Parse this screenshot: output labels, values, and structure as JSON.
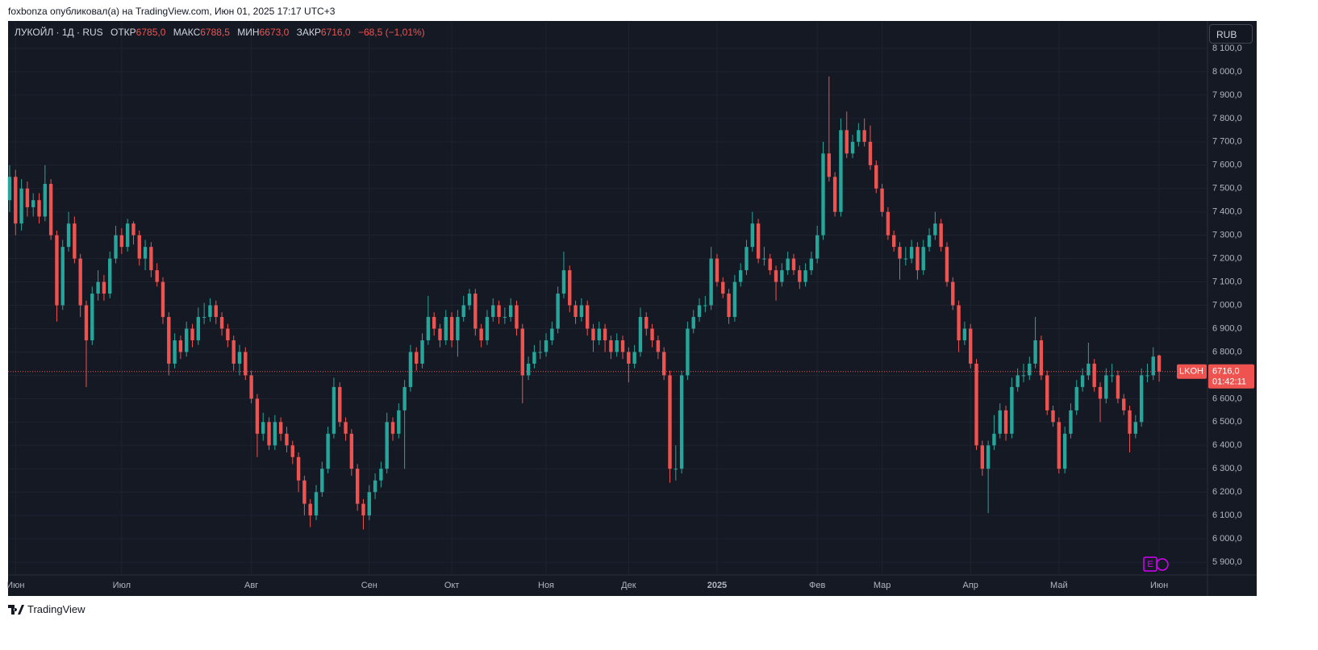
{
  "header": {
    "published": "foxbonza опубликовал(а) на TradingView.com, Июн 01, 2025 17:17 UTC+3"
  },
  "footer": {
    "brand": "TradingView"
  },
  "chart_data": {
    "type": "candlestick",
    "symbol": "ЛУКОЙЛ · 1Д · RUS",
    "legend": {
      "open_label": "ОТКР",
      "open": "6785,0",
      "high_label": "МАКС",
      "high": "6788,5",
      "low_label": "МИН",
      "low": "6673,0",
      "close_label": "ЗАКР",
      "close": "6716,0",
      "change": "−68,5 (−1,01%)"
    },
    "currency": "RUB",
    "price_tag": {
      "ticker": "LKOH",
      "price": "6716,0",
      "countdown": "01:42:11"
    },
    "event_marker": "E",
    "up_color": "#26a69a",
    "down_color": "#ef5350",
    "grid": true,
    "xlim": [
      -0.27,
      203.2
    ],
    "xticks": [
      {
        "value": 1,
        "label": "Июн"
      },
      {
        "value": 19,
        "label": "Июл"
      },
      {
        "value": 41,
        "label": "Авг"
      },
      {
        "value": 61,
        "label": "Сен"
      },
      {
        "value": 75,
        "label": "Окт"
      },
      {
        "value": 91,
        "label": "Ноя"
      },
      {
        "value": 105,
        "label": "Дек"
      },
      {
        "value": 120,
        "label": "2025"
      },
      {
        "value": 137,
        "label": "Фев"
      },
      {
        "value": 148,
        "label": "Мар"
      },
      {
        "value": 163,
        "label": "Апр"
      },
      {
        "value": 178,
        "label": "Май"
      },
      {
        "value": 195,
        "label": "Июн"
      }
    ],
    "ylim": [
      5845,
      8214
    ],
    "yticks": [
      {
        "value": 5900,
        "label": "5 900,0"
      },
      {
        "value": 6000,
        "label": "6 000,0"
      },
      {
        "value": 6100,
        "label": "6 100,0"
      },
      {
        "value": 6200,
        "label": "6 200,0"
      },
      {
        "value": 6300,
        "label": "6 300,0"
      },
      {
        "value": 6400,
        "label": "6 400,0"
      },
      {
        "value": 6500,
        "label": "6 500,0"
      },
      {
        "value": 6600,
        "label": "6 600,0"
      },
      {
        "value": 6700,
        "label": "6 700,0"
      },
      {
        "value": 6800,
        "label": "6 800,0"
      },
      {
        "value": 6900,
        "label": "6 900,0"
      },
      {
        "value": 7000,
        "label": "7 000,0"
      },
      {
        "value": 7100,
        "label": "7 100,0"
      },
      {
        "value": 7200,
        "label": "7 200,0"
      },
      {
        "value": 7300,
        "label": "7 300,0"
      },
      {
        "value": 7400,
        "label": "7 400,0"
      },
      {
        "value": 7500,
        "label": "7 500,0"
      },
      {
        "value": 7600,
        "label": "7 600,0"
      },
      {
        "value": 7700,
        "label": "7 700,0"
      },
      {
        "value": 7800,
        "label": "7 800,0"
      },
      {
        "value": 7900,
        "label": "7 900,0"
      },
      {
        "value": 8000,
        "label": "8 000,0"
      },
      {
        "value": 8100,
        "label": "8 100,0"
      }
    ],
    "candles": [
      [
        7450,
        7600,
        7400,
        7550
      ],
      [
        7550,
        7580,
        7300,
        7350
      ],
      [
        7350,
        7540,
        7320,
        7500
      ],
      [
        7500,
        7530,
        7380,
        7420
      ],
      [
        7420,
        7480,
        7380,
        7450
      ],
      [
        7450,
        7480,
        7350,
        7380
      ],
      [
        7380,
        7600,
        7360,
        7520
      ],
      [
        7520,
        7540,
        7280,
        7300
      ],
      [
        7300,
        7320,
        6930,
        7000
      ],
      [
        7000,
        7280,
        6980,
        7250
      ],
      [
        7250,
        7400,
        7230,
        7350
      ],
      [
        7350,
        7380,
        7180,
        7200
      ],
      [
        7200,
        7220,
        6950,
        7000
      ],
      [
        7000,
        7020,
        6650,
        6850
      ],
      [
        6850,
        7080,
        6830,
        7050
      ],
      [
        7050,
        7150,
        7020,
        7100
      ],
      [
        7100,
        7130,
        7020,
        7050
      ],
      [
        7050,
        7230,
        7030,
        7200
      ],
      [
        7200,
        7340,
        7180,
        7300
      ],
      [
        7300,
        7330,
        7220,
        7250
      ],
      [
        7250,
        7370,
        7230,
        7350
      ],
      [
        7350,
        7360,
        7260,
        7300
      ],
      [
        7300,
        7320,
        7170,
        7200
      ],
      [
        7200,
        7280,
        7150,
        7250
      ],
      [
        7250,
        7270,
        7120,
        7150
      ],
      [
        7150,
        7180,
        7080,
        7100
      ],
      [
        7100,
        7120,
        6920,
        6950
      ],
      [
        6950,
        6970,
        6700,
        6750
      ],
      [
        6750,
        6880,
        6730,
        6850
      ],
      [
        6850,
        6870,
        6770,
        6800
      ],
      [
        6800,
        6930,
        6780,
        6900
      ],
      [
        6900,
        6920,
        6820,
        6850
      ],
      [
        6850,
        6990,
        6830,
        6950
      ],
      [
        6950,
        7010,
        6920,
        6950
      ],
      [
        6950,
        7030,
        6930,
        7000
      ],
      [
        7000,
        7020,
        6920,
        6950
      ],
      [
        6950,
        6970,
        6870,
        6900
      ],
      [
        6900,
        6920,
        6820,
        6850
      ],
      [
        6850,
        6870,
        6720,
        6750
      ],
      [
        6750,
        6830,
        6700,
        6800
      ],
      [
        6800,
        6820,
        6680,
        6700
      ],
      [
        6700,
        6720,
        6580,
        6600
      ],
      [
        6600,
        6620,
        6350,
        6450
      ],
      [
        6450,
        6540,
        6420,
        6500
      ],
      [
        6500,
        6520,
        6380,
        6400
      ],
      [
        6400,
        6530,
        6380,
        6500
      ],
      [
        6500,
        6520,
        6420,
        6450
      ],
      [
        6450,
        6480,
        6370,
        6400
      ],
      [
        6400,
        6420,
        6320,
        6350
      ],
      [
        6350,
        6370,
        6200,
        6250
      ],
      [
        6250,
        6270,
        6100,
        6150
      ],
      [
        6150,
        6170,
        6050,
        6100
      ],
      [
        6100,
        6230,
        6080,
        6200
      ],
      [
        6200,
        6330,
        6180,
        6300
      ],
      [
        6300,
        6480,
        6280,
        6450
      ],
      [
        6450,
        6690,
        6430,
        6650
      ],
      [
        6650,
        6670,
        6480,
        6500
      ],
      [
        6500,
        6520,
        6420,
        6450
      ],
      [
        6450,
        6470,
        6270,
        6300
      ],
      [
        6300,
        6320,
        6120,
        6150
      ],
      [
        6150,
        6170,
        6040,
        6100
      ],
      [
        6100,
        6230,
        6080,
        6200
      ],
      [
        6200,
        6280,
        6170,
        6250
      ],
      [
        6250,
        6330,
        6220,
        6300
      ],
      [
        6300,
        6540,
        6280,
        6500
      ],
      [
        6500,
        6520,
        6420,
        6450
      ],
      [
        6450,
        6580,
        6430,
        6550
      ],
      [
        6550,
        6680,
        6300,
        6650
      ],
      [
        6650,
        6830,
        6630,
        6800
      ],
      [
        6800,
        6820,
        6720,
        6750
      ],
      [
        6750,
        6880,
        6730,
        6850
      ],
      [
        6850,
        7040,
        6830,
        6950
      ],
      [
        6950,
        6970,
        6870,
        6900
      ],
      [
        6900,
        6920,
        6820,
        6850
      ],
      [
        6850,
        6980,
        6830,
        6950
      ],
      [
        6950,
        6970,
        6820,
        6850
      ],
      [
        6850,
        6980,
        6780,
        6950
      ],
      [
        6950,
        7040,
        6930,
        7000
      ],
      [
        7000,
        7070,
        6980,
        7050
      ],
      [
        7050,
        7070,
        6870,
        6900
      ],
      [
        6900,
        6920,
        6820,
        6850
      ],
      [
        6850,
        6980,
        6830,
        6950
      ],
      [
        6950,
        7030,
        6930,
        7000
      ],
      [
        7000,
        7020,
        6920,
        6950
      ],
      [
        6950,
        6990,
        6920,
        6950
      ],
      [
        6950,
        7030,
        6930,
        7000
      ],
      [
        7000,
        7020,
        6870,
        6900
      ],
      [
        6900,
        6920,
        6580,
        6700
      ],
      [
        6700,
        6780,
        6680,
        6750
      ],
      [
        6750,
        6830,
        6730,
        6800
      ],
      [
        6800,
        6850,
        6770,
        6800
      ],
      [
        6800,
        6880,
        6780,
        6850
      ],
      [
        6850,
        6930,
        6830,
        6900
      ],
      [
        6900,
        7080,
        6880,
        7050
      ],
      [
        7050,
        7230,
        7030,
        7150
      ],
      [
        7150,
        7170,
        6970,
        7000
      ],
      [
        7000,
        7020,
        6920,
        6950
      ],
      [
        6950,
        7030,
        6930,
        7000
      ],
      [
        7000,
        7020,
        6870,
        6900
      ],
      [
        6900,
        6920,
        6800,
        6850
      ],
      [
        6850,
        6930,
        6830,
        6900
      ],
      [
        6900,
        6920,
        6800,
        6850
      ],
      [
        6850,
        6870,
        6770,
        6800
      ],
      [
        6800,
        6880,
        6780,
        6850
      ],
      [
        6850,
        6870,
        6770,
        6800
      ],
      [
        6800,
        6820,
        6670,
        6750
      ],
      [
        6750,
        6830,
        6730,
        6800
      ],
      [
        6800,
        6990,
        6780,
        6950
      ],
      [
        6950,
        6970,
        6870,
        6900
      ],
      [
        6900,
        6920,
        6820,
        6850
      ],
      [
        6850,
        6870,
        6770,
        6800
      ],
      [
        6800,
        6820,
        6680,
        6700
      ],
      [
        6700,
        6720,
        6240,
        6300
      ],
      [
        6300,
        6400,
        6250,
        6300
      ],
      [
        6300,
        6720,
        6280,
        6700
      ],
      [
        6700,
        6930,
        6680,
        6900
      ],
      [
        6900,
        6980,
        6880,
        6950
      ],
      [
        6950,
        7030,
        6930,
        7000
      ],
      [
        7000,
        7040,
        6970,
        7000
      ],
      [
        7000,
        7250,
        6980,
        7200
      ],
      [
        7200,
        7220,
        7080,
        7100
      ],
      [
        7100,
        7120,
        7030,
        7050
      ],
      [
        7050,
        7070,
        6920,
        6950
      ],
      [
        6950,
        7130,
        6930,
        7100
      ],
      [
        7100,
        7180,
        7080,
        7150
      ],
      [
        7150,
        7280,
        7130,
        7250
      ],
      [
        7250,
        7400,
        7230,
        7350
      ],
      [
        7350,
        7370,
        7180,
        7200
      ],
      [
        7200,
        7250,
        7170,
        7200
      ],
      [
        7200,
        7220,
        7130,
        7150
      ],
      [
        7150,
        7170,
        7020,
        7100
      ],
      [
        7100,
        7180,
        7080,
        7150
      ],
      [
        7150,
        7230,
        7130,
        7200
      ],
      [
        7200,
        7220,
        7130,
        7150
      ],
      [
        7150,
        7170,
        7070,
        7100
      ],
      [
        7100,
        7180,
        7080,
        7150
      ],
      [
        7150,
        7230,
        7130,
        7200
      ],
      [
        7200,
        7340,
        7180,
        7300
      ],
      [
        7300,
        7700,
        7280,
        7650
      ],
      [
        7650,
        7980,
        7530,
        7550
      ],
      [
        7550,
        7570,
        7380,
        7400
      ],
      [
        7400,
        7800,
        7380,
        7750
      ],
      [
        7750,
        7830,
        7630,
        7650
      ],
      [
        7650,
        7730,
        7630,
        7700
      ],
      [
        7700,
        7780,
        7680,
        7750
      ],
      [
        7750,
        7800,
        7680,
        7700
      ],
      [
        7700,
        7770,
        7580,
        7600
      ],
      [
        7600,
        7620,
        7480,
        7500
      ],
      [
        7500,
        7520,
        7380,
        7400
      ],
      [
        7400,
        7420,
        7280,
        7300
      ],
      [
        7300,
        7320,
        7230,
        7250
      ],
      [
        7250,
        7270,
        7110,
        7200
      ],
      [
        7200,
        7250,
        7170,
        7200
      ],
      [
        7200,
        7280,
        7180,
        7250
      ],
      [
        7250,
        7270,
        7110,
        7150
      ],
      [
        7150,
        7280,
        7130,
        7250
      ],
      [
        7250,
        7330,
        7230,
        7300
      ],
      [
        7300,
        7400,
        7280,
        7350
      ],
      [
        7350,
        7370,
        7230,
        7250
      ],
      [
        7250,
        7270,
        7080,
        7100
      ],
      [
        7100,
        7120,
        6980,
        7000
      ],
      [
        7000,
        7020,
        6800,
        6850
      ],
      [
        6850,
        6930,
        6830,
        6900
      ],
      [
        6900,
        6920,
        6730,
        6750
      ],
      [
        6750,
        6770,
        6380,
        6400
      ],
      [
        6400,
        6420,
        6270,
        6300
      ],
      [
        6300,
        6420,
        6110,
        6400
      ],
      [
        6400,
        6530,
        6380,
        6450
      ],
      [
        6450,
        6580,
        6430,
        6550
      ],
      [
        6550,
        6570,
        6420,
        6450
      ],
      [
        6450,
        6690,
        6430,
        6650
      ],
      [
        6650,
        6730,
        6630,
        6700
      ],
      [
        6700,
        6750,
        6670,
        6700
      ],
      [
        6700,
        6780,
        6680,
        6750
      ],
      [
        6750,
        6950,
        6730,
        6850
      ],
      [
        6850,
        6870,
        6680,
        6700
      ],
      [
        6700,
        6720,
        6530,
        6550
      ],
      [
        6550,
        6570,
        6480,
        6500
      ],
      [
        6500,
        6520,
        6280,
        6300
      ],
      [
        6300,
        6480,
        6280,
        6450
      ],
      [
        6450,
        6580,
        6430,
        6550
      ],
      [
        6550,
        6680,
        6530,
        6650
      ],
      [
        6650,
        6730,
        6630,
        6700
      ],
      [
        6700,
        6840,
        6680,
        6750
      ],
      [
        6750,
        6770,
        6630,
        6650
      ],
      [
        6650,
        6670,
        6500,
        6600
      ],
      [
        6600,
        6730,
        6580,
        6700
      ],
      [
        6700,
        6750,
        6670,
        6700
      ],
      [
        6700,
        6720,
        6580,
        6600
      ],
      [
        6600,
        6620,
        6530,
        6550
      ],
      [
        6550,
        6570,
        6370,
        6450
      ],
      [
        6450,
        6530,
        6430,
        6500
      ],
      [
        6500,
        6730,
        6480,
        6700
      ],
      [
        6700,
        6750,
        6670,
        6700
      ],
      [
        6700,
        6820,
        6680,
        6780
      ],
      [
        6785,
        6788.5,
        6673,
        6716
      ]
    ]
  }
}
